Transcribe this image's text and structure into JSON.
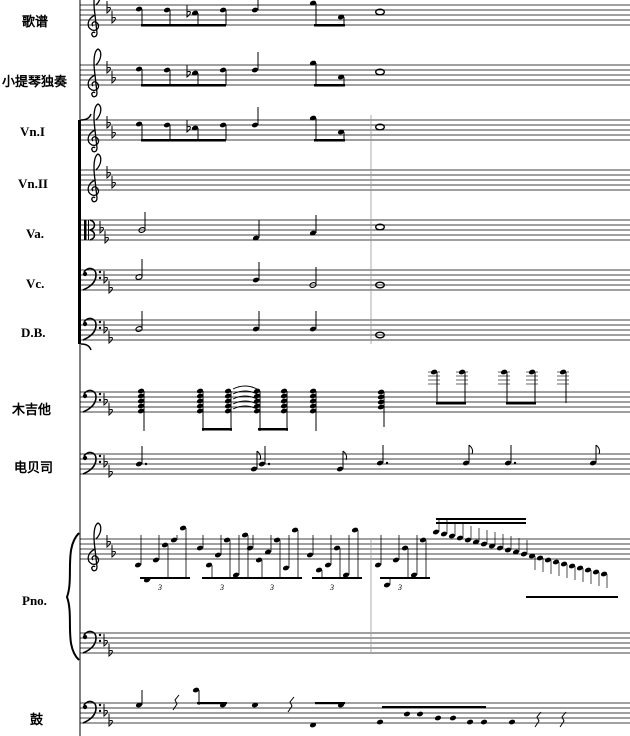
{
  "instruments": [
    {
      "id": "lyrics",
      "label": "歌谱"
    },
    {
      "id": "violin-solo",
      "label": "小提琴独奏"
    },
    {
      "id": "vn1",
      "label": "Vn.I"
    },
    {
      "id": "vn2",
      "label": "Vn.II"
    },
    {
      "id": "va",
      "label": "Va."
    },
    {
      "id": "vc",
      "label": "Vc."
    },
    {
      "id": "db",
      "label": "D.B."
    },
    {
      "id": "guitar",
      "label": "木吉他"
    },
    {
      "id": "bass",
      "label": "电贝司"
    },
    {
      "id": "piano",
      "label": "Pno."
    },
    {
      "id": "drums",
      "label": "鼓"
    }
  ],
  "tuplet_mark": "3",
  "colors": {
    "ink": "#000000",
    "barline": "#999999",
    "paper": "#ffffff"
  }
}
